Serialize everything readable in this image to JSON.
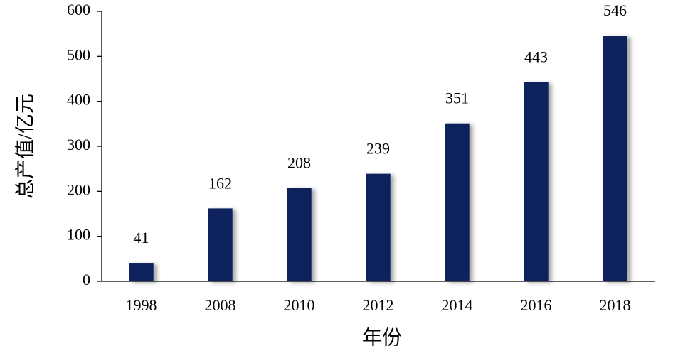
{
  "chart_data": {
    "type": "bar",
    "x_label": "年份",
    "y_label": "总产值/亿元",
    "categories": [
      "1998",
      "2008",
      "2010",
      "2012",
      "2014",
      "2016",
      "2018"
    ],
    "values": [
      41,
      162,
      208,
      239,
      351,
      443,
      546
    ],
    "color": "#0f215c",
    "ylim": [
      0,
      600
    ],
    "yticks": [
      0,
      100,
      200,
      300,
      400,
      500,
      600
    ],
    "grid": false
  }
}
